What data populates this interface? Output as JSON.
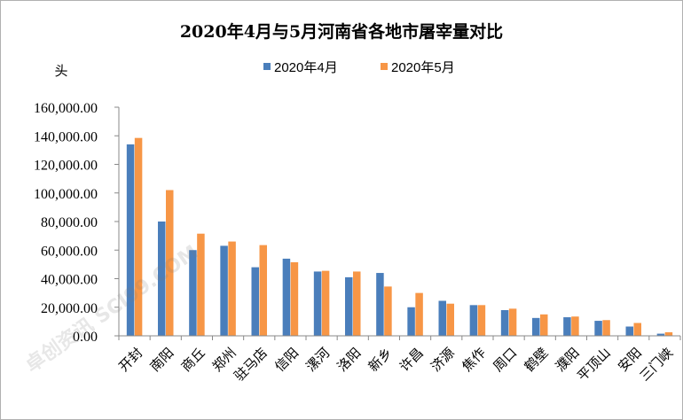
{
  "chart_data": {
    "type": "bar",
    "title": "2020年4月与5月河南省各地市屠宰量对比",
    "ylabel": "头",
    "ylim": [
      0,
      160000
    ],
    "yticks": [
      "160,000.00",
      "140,000.00",
      "120,000.00",
      "100,000.00",
      "80,000.00",
      "60,000.00",
      "40,000.00",
      "20,000.00",
      "0.00"
    ],
    "ytick_values": [
      160000,
      140000,
      120000,
      100000,
      80000,
      60000,
      40000,
      20000,
      0
    ],
    "categories": [
      "开封",
      "南阳",
      "商丘",
      "郑州",
      "驻马店",
      "信阳",
      "漯河",
      "洛阳",
      "新乡",
      "许昌",
      "济源",
      "焦作",
      "周口",
      "鹤壁",
      "濮阳",
      "平顶山",
      "安阳",
      "三门峡"
    ],
    "series": [
      {
        "name": "2020年4月",
        "color": "#4a7ebb",
        "values": [
          134000,
          80000,
          60000,
          63000,
          48000,
          54000,
          45000,
          41000,
          44000,
          20000,
          24500,
          21500,
          18000,
          12500,
          13000,
          10500,
          6500,
          1500
        ]
      },
      {
        "name": "2020年5月",
        "color": "#f79646",
        "values": [
          138500,
          102000,
          71500,
          66000,
          63500,
          51500,
          45500,
          45000,
          34500,
          30000,
          22500,
          21500,
          19000,
          15000,
          13500,
          11000,
          9000,
          2500
        ]
      }
    ],
    "legend": "top",
    "grid": false
  },
  "watermark": "卓创资讯 SCI99.COM"
}
